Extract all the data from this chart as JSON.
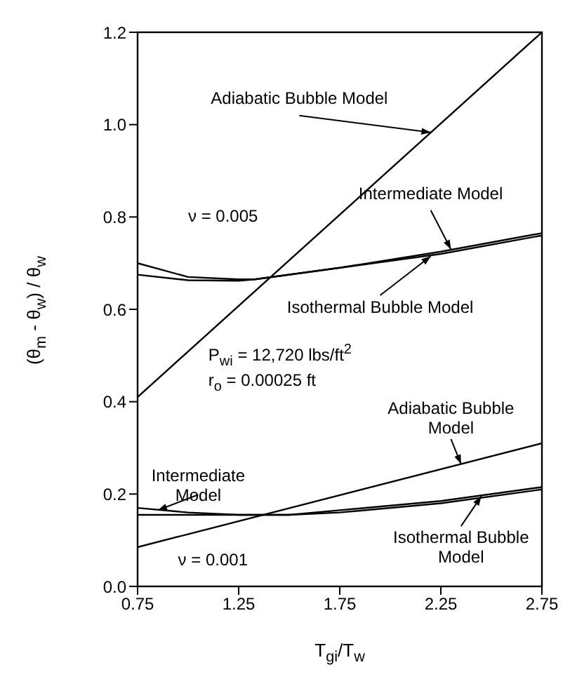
{
  "chart_data": {
    "type": "line",
    "xlabel": "T$_{gi}$/T$_{w}$",
    "ylabel": "(θ$_{m}$ - θ$_{w}$) / θ$_{w}$",
    "xlim": [
      0.75,
      2.75
    ],
    "xticks": [
      0.75,
      1.25,
      1.75,
      2.25,
      2.75
    ],
    "ylim": [
      0,
      1.2
    ],
    "yticks": [
      {
        "value": 0,
        "label": "0.0"
      },
      0.2,
      0.4,
      0.6,
      0.8,
      {
        "value": 1,
        "label": "1.0"
      },
      1.2
    ],
    "series": [
      {
        "color": "#000000",
        "x": [
          0.75,
          2.75
        ],
        "values": [
          0.41,
          1.2
        ]
      },
      {
        "color": "#000000",
        "x": [
          0.75,
          1.0,
          1.25,
          1.33,
          1.75,
          2.25,
          2.75
        ],
        "values": [
          0.7,
          0.67,
          0.665,
          0.665,
          0.69,
          0.725,
          0.765
        ]
      },
      {
        "color": "#000000",
        "x": [
          0.75,
          1.0,
          1.25,
          1.33,
          1.75,
          2.25,
          2.75
        ],
        "values": [
          0.675,
          0.663,
          0.662,
          0.665,
          0.69,
          0.72,
          0.76
        ]
      },
      {
        "color": "#000000",
        "x": [
          0.75,
          2.75
        ],
        "values": [
          0.085,
          0.31
        ]
      },
      {
        "color": "#000000",
        "x": [
          0.75,
          1.0,
          1.25,
          1.5,
          1.75,
          2.25,
          2.75
        ],
        "values": [
          0.17,
          0.16,
          0.155,
          0.155,
          0.165,
          0.185,
          0.215
        ]
      },
      {
        "color": "#000000",
        "x": [
          0.75,
          1.25,
          1.5,
          1.75,
          2.25,
          2.75
        ],
        "values": [
          0.155,
          0.155,
          0.155,
          0.16,
          0.18,
          0.21
        ]
      }
    ],
    "annotations": [
      {
        "text": "Adiabatic Bubble Model",
        "x": 2.2,
        "y": 0.983
      },
      {
        "text": "Intermediate Model",
        "x": 2.3,
        "y": 0.73
      },
      {
        "text": "Isothermal Bubble Model",
        "x": 2.2,
        "y": 0.715
      },
      {
        "text": "Adiabatic Bubble Model",
        "x": 2.35,
        "y": 0.265
      },
      {
        "text": "Intermediate Model",
        "x": 0.85,
        "y": 0.165
      },
      {
        "text": "Isothermal Bubble Model",
        "x": 2.45,
        "y": 0.195
      },
      "ν = 0.005",
      "P$_{wi}$ = 12,720 lbs/ft$^{2}$",
      "r$_{o}$ = 0.00025 ft",
      "ν = 0.001"
    ]
  }
}
